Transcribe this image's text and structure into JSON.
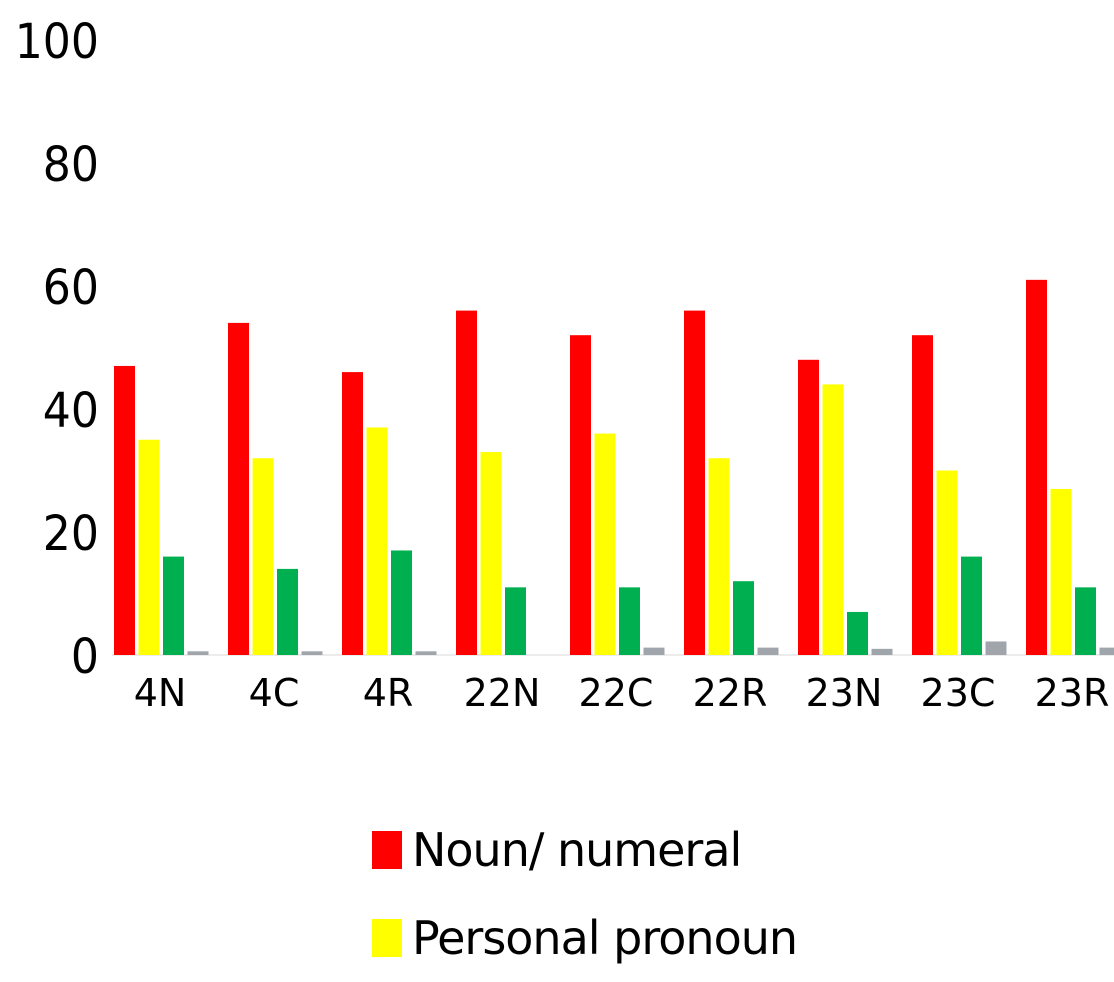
{
  "chart_data": {
    "type": "bar",
    "categories": [
      "4N",
      "4C",
      "4R",
      "22N",
      "22C",
      "22R",
      "23N",
      "23C",
      "23R"
    ],
    "series": [
      {
        "name": "Noun/ numeral",
        "color": "#ff0000",
        "values": [
          47,
          54,
          46,
          56,
          52,
          56,
          48,
          52,
          61
        ]
      },
      {
        "name": "Personal pronoun",
        "color": "#ffff00",
        "values": [
          35,
          32,
          37,
          33,
          36,
          32,
          44,
          30,
          27
        ]
      },
      {
        "values": [
          16,
          14,
          17,
          11,
          11,
          12,
          7,
          16,
          11
        ],
        "color": "#00b050"
      },
      {
        "values": [
          0.6,
          0.6,
          0.6,
          0,
          1.2,
          1.2,
          1,
          2.2,
          1.2
        ],
        "color": "#a0a4ab"
      }
    ],
    "yticks": [
      "0",
      "20",
      "40",
      "60",
      "80",
      "100"
    ],
    "ylim": [
      0,
      100
    ],
    "legend_position": "bottom"
  }
}
